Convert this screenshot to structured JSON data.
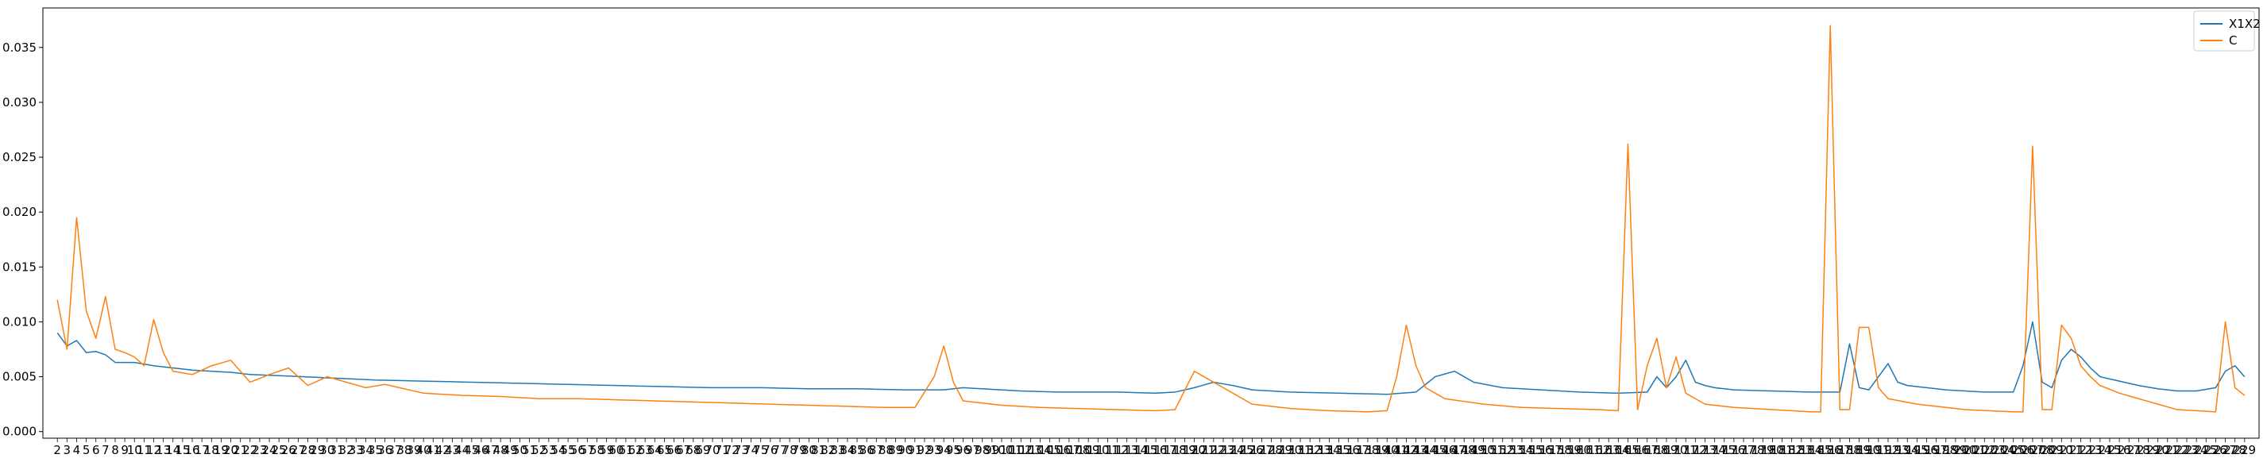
{
  "chart_data": {
    "type": "line",
    "title": "",
    "xlabel": "",
    "ylabel": "",
    "ylim": [
      -0.0006,
      0.0386
    ],
    "yticks": [
      0.0,
      0.005,
      0.01,
      0.015,
      0.02,
      0.025,
      0.03,
      0.035
    ],
    "ytick_labels": [
      "0.000",
      "0.005",
      "0.010",
      "0.015",
      "0.020",
      "0.025",
      "0.030",
      "0.035"
    ],
    "x_start": 2,
    "x_end": 229,
    "x_step": 1,
    "x_tick_labels_overlapping": true,
    "grid": false,
    "legend_position": "top-right",
    "colors": {
      "X1X2": "#1f77b4",
      "C": "#ff7f0e"
    },
    "series": [
      {
        "name": "X1X2",
        "keypoints": [
          [
            2,
            0.009
          ],
          [
            3,
            0.0078
          ],
          [
            4,
            0.0083
          ],
          [
            5,
            0.0072
          ],
          [
            6,
            0.0073
          ],
          [
            7,
            0.007
          ],
          [
            8,
            0.0063
          ],
          [
            10,
            0.0063
          ],
          [
            12,
            0.006
          ],
          [
            14,
            0.0058
          ],
          [
            16,
            0.0056
          ],
          [
            18,
            0.0055
          ],
          [
            20,
            0.0054
          ],
          [
            22,
            0.0052
          ],
          [
            25,
            0.0051
          ],
          [
            30,
            0.0049
          ],
          [
            35,
            0.0047
          ],
          [
            40,
            0.0046
          ],
          [
            45,
            0.0045
          ],
          [
            50,
            0.0044
          ],
          [
            55,
            0.0043
          ],
          [
            60,
            0.0042
          ],
          [
            65,
            0.0041
          ],
          [
            70,
            0.004
          ],
          [
            75,
            0.004
          ],
          [
            80,
            0.0039
          ],
          [
            85,
            0.0039
          ],
          [
            90,
            0.0038
          ],
          [
            94,
            0.0038
          ],
          [
            96,
            0.004
          ],
          [
            98,
            0.0039
          ],
          [
            102,
            0.0037
          ],
          [
            106,
            0.0036
          ],
          [
            112,
            0.0036
          ],
          [
            116,
            0.0035
          ],
          [
            118,
            0.0036
          ],
          [
            120,
            0.004
          ],
          [
            122,
            0.0045
          ],
          [
            124,
            0.0042
          ],
          [
            126,
            0.0038
          ],
          [
            130,
            0.0036
          ],
          [
            135,
            0.0035
          ],
          [
            140,
            0.0034
          ],
          [
            143,
            0.0036
          ],
          [
            145,
            0.005
          ],
          [
            147,
            0.0055
          ],
          [
            149,
            0.0045
          ],
          [
            152,
            0.004
          ],
          [
            156,
            0.0038
          ],
          [
            160,
            0.0036
          ],
          [
            164,
            0.0035
          ],
          [
            167,
            0.0036
          ],
          [
            168,
            0.005
          ],
          [
            169,
            0.004
          ],
          [
            170,
            0.005
          ],
          [
            171,
            0.0065
          ],
          [
            172,
            0.0045
          ],
          [
            173,
            0.0042
          ],
          [
            174,
            0.004
          ],
          [
            176,
            0.0038
          ],
          [
            180,
            0.0037
          ],
          [
            184,
            0.0036
          ],
          [
            187,
            0.0036
          ],
          [
            188,
            0.008
          ],
          [
            189,
            0.004
          ],
          [
            190,
            0.0038
          ],
          [
            191,
            0.005
          ],
          [
            192,
            0.0062
          ],
          [
            193,
            0.0045
          ],
          [
            194,
            0.0042
          ],
          [
            196,
            0.004
          ],
          [
            198,
            0.0038
          ],
          [
            202,
            0.0036
          ],
          [
            205,
            0.0036
          ],
          [
            206,
            0.006
          ],
          [
            207,
            0.01
          ],
          [
            208,
            0.0045
          ],
          [
            209,
            0.004
          ],
          [
            210,
            0.0065
          ],
          [
            211,
            0.0075
          ],
          [
            212,
            0.0068
          ],
          [
            213,
            0.0058
          ],
          [
            214,
            0.005
          ],
          [
            216,
            0.0046
          ],
          [
            218,
            0.0042
          ],
          [
            220,
            0.0039
          ],
          [
            222,
            0.0037
          ],
          [
            224,
            0.0037
          ],
          [
            226,
            0.004
          ],
          [
            227,
            0.0055
          ],
          [
            228,
            0.006
          ],
          [
            229,
            0.005
          ]
        ]
      },
      {
        "name": "C",
        "keypoints": [
          [
            2,
            0.012
          ],
          [
            3,
            0.0075
          ],
          [
            4,
            0.0195
          ],
          [
            5,
            0.011
          ],
          [
            6,
            0.0085
          ],
          [
            7,
            0.0123
          ],
          [
            8,
            0.0075
          ],
          [
            9,
            0.0072
          ],
          [
            10,
            0.0068
          ],
          [
            11,
            0.006
          ],
          [
            12,
            0.0102
          ],
          [
            13,
            0.0072
          ],
          [
            14,
            0.0055
          ],
          [
            16,
            0.0052
          ],
          [
            18,
            0.006
          ],
          [
            20,
            0.0065
          ],
          [
            22,
            0.0045
          ],
          [
            24,
            0.0052
          ],
          [
            26,
            0.0058
          ],
          [
            28,
            0.0042
          ],
          [
            30,
            0.005
          ],
          [
            32,
            0.0045
          ],
          [
            34,
            0.004
          ],
          [
            36,
            0.0043
          ],
          [
            40,
            0.0035
          ],
          [
            44,
            0.0033
          ],
          [
            48,
            0.0032
          ],
          [
            52,
            0.003
          ],
          [
            56,
            0.003
          ],
          [
            60,
            0.0029
          ],
          [
            64,
            0.0028
          ],
          [
            68,
            0.0027
          ],
          [
            72,
            0.0026
          ],
          [
            76,
            0.0025
          ],
          [
            80,
            0.0024
          ],
          [
            84,
            0.0023
          ],
          [
            88,
            0.0022
          ],
          [
            91,
            0.0022
          ],
          [
            93,
            0.005
          ],
          [
            94,
            0.0078
          ],
          [
            95,
            0.0045
          ],
          [
            96,
            0.0028
          ],
          [
            100,
            0.0024
          ],
          [
            104,
            0.0022
          ],
          [
            108,
            0.0021
          ],
          [
            112,
            0.002
          ],
          [
            116,
            0.0019
          ],
          [
            118,
            0.002
          ],
          [
            120,
            0.0055
          ],
          [
            122,
            0.0045
          ],
          [
            124,
            0.0035
          ],
          [
            126,
            0.0025
          ],
          [
            130,
            0.0021
          ],
          [
            134,
            0.0019
          ],
          [
            138,
            0.0018
          ],
          [
            140,
            0.0019
          ],
          [
            141,
            0.005
          ],
          [
            142,
            0.0097
          ],
          [
            143,
            0.006
          ],
          [
            144,
            0.004
          ],
          [
            146,
            0.003
          ],
          [
            150,
            0.0025
          ],
          [
            154,
            0.0022
          ],
          [
            158,
            0.0021
          ],
          [
            162,
            0.002
          ],
          [
            164,
            0.0019
          ],
          [
            165,
            0.0262
          ],
          [
            166,
            0.002
          ],
          [
            167,
            0.006
          ],
          [
            168,
            0.0085
          ],
          [
            169,
            0.004
          ],
          [
            170,
            0.0068
          ],
          [
            171,
            0.0035
          ],
          [
            173,
            0.0025
          ],
          [
            176,
            0.0022
          ],
          [
            180,
            0.002
          ],
          [
            184,
            0.0018
          ],
          [
            185,
            0.0018
          ],
          [
            186,
            0.037
          ],
          [
            187,
            0.002
          ],
          [
            188,
            0.002
          ],
          [
            189,
            0.0095
          ],
          [
            190,
            0.0095
          ],
          [
            191,
            0.004
          ],
          [
            192,
            0.003
          ],
          [
            195,
            0.0025
          ],
          [
            200,
            0.002
          ],
          [
            205,
            0.0018
          ],
          [
            206,
            0.0018
          ],
          [
            207,
            0.026
          ],
          [
            208,
            0.002
          ],
          [
            209,
            0.002
          ],
          [
            210,
            0.0097
          ],
          [
            211,
            0.0085
          ],
          [
            212,
            0.006
          ],
          [
            213,
            0.005
          ],
          [
            214,
            0.0042
          ],
          [
            216,
            0.0035
          ],
          [
            218,
            0.003
          ],
          [
            220,
            0.0025
          ],
          [
            222,
            0.002
          ],
          [
            224,
            0.0019
          ],
          [
            226,
            0.0018
          ],
          [
            227,
            0.01
          ],
          [
            228,
            0.004
          ],
          [
            229,
            0.0033
          ]
        ]
      }
    ]
  }
}
